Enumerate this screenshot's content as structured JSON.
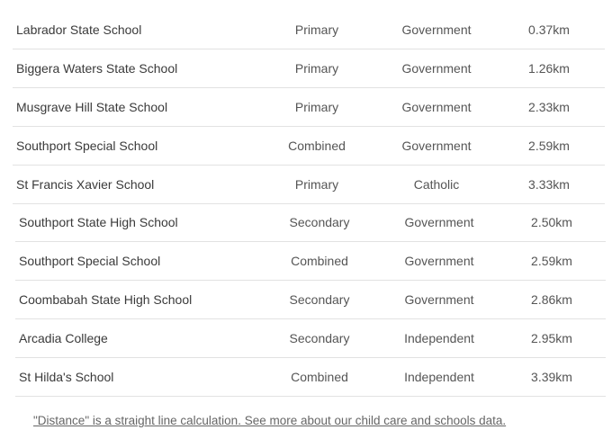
{
  "tables": [
    {
      "rows": [
        {
          "name": "Labrador State School",
          "type": "Primary",
          "sector": "Government",
          "distance": "0.37km"
        },
        {
          "name": "Biggera Waters State School",
          "type": "Primary",
          "sector": "Government",
          "distance": "1.26km"
        },
        {
          "name": "Musgrave Hill State School",
          "type": "Primary",
          "sector": "Government",
          "distance": "2.33km"
        },
        {
          "name": "Southport Special School",
          "type": "Combined",
          "sector": "Government",
          "distance": "2.59km"
        },
        {
          "name": "St Francis Xavier School",
          "type": "Primary",
          "sector": "Catholic",
          "distance": "3.33km"
        }
      ]
    },
    {
      "rows": [
        {
          "name": "Southport State High School",
          "type": "Secondary",
          "sector": "Government",
          "distance": "2.50km"
        },
        {
          "name": "Southport Special School",
          "type": "Combined",
          "sector": "Government",
          "distance": "2.59km"
        },
        {
          "name": "Coombabah State High School",
          "type": "Secondary",
          "sector": "Government",
          "distance": "2.86km"
        },
        {
          "name": "Arcadia College",
          "type": "Secondary",
          "sector": "Independent",
          "distance": "2.95km"
        },
        {
          "name": "St Hilda's School",
          "type": "Combined",
          "sector": "Independent",
          "distance": "3.39km"
        }
      ]
    }
  ],
  "footer": {
    "link": "\"Distance\" is a straight line calculation. See more about our child care and schools data."
  }
}
